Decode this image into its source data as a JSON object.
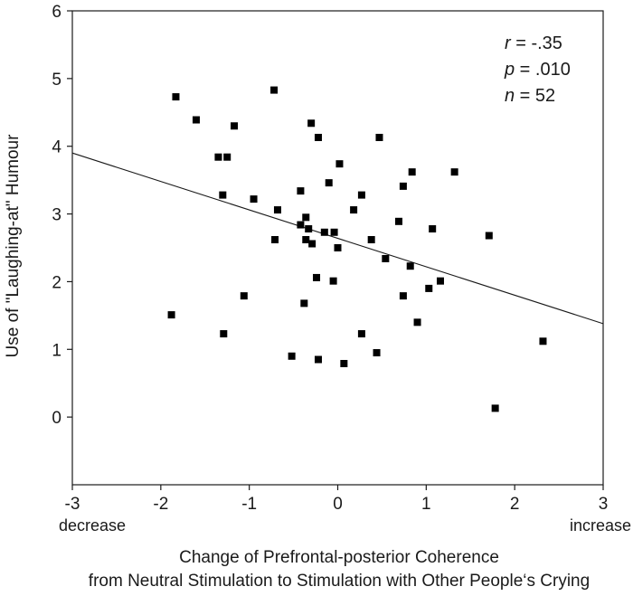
{
  "chart_data": {
    "type": "scatter",
    "title": "",
    "xlabel_lines": [
      "Change of Prefrontal-posterior Coherence",
      "from Neutral Stimulation to Stimulation with Other People‘s Crying"
    ],
    "ylabel": "Use of \"Laughing-at\" Humour",
    "xlim": [
      -3,
      3
    ],
    "ylim": [
      -1,
      6
    ],
    "xticks": [
      -3,
      -2,
      -1,
      0,
      1,
      2,
      3
    ],
    "yticks": [
      0,
      1,
      2,
      3,
      4,
      5,
      6
    ],
    "x_end_labels": {
      "left": "decrease",
      "right": "increase"
    },
    "stats": [
      {
        "var": "r",
        "value": " = -.35"
      },
      {
        "var": "p",
        "value": " = .010"
      },
      {
        "var": "n",
        "value": " = 52"
      }
    ],
    "regression_line": {
      "x": [
        -3,
        3
      ],
      "y": [
        3.9,
        1.38
      ]
    },
    "points": [
      {
        "x": -1.83,
        "y": 4.73
      },
      {
        "x": -1.6,
        "y": 4.39
      },
      {
        "x": -1.17,
        "y": 4.3
      },
      {
        "x": -1.35,
        "y": 3.84
      },
      {
        "x": -1.25,
        "y": 3.84
      },
      {
        "x": -1.3,
        "y": 3.28
      },
      {
        "x": -0.95,
        "y": 3.22
      },
      {
        "x": -0.72,
        "y": 4.83
      },
      {
        "x": -0.3,
        "y": 4.34
      },
      {
        "x": -0.22,
        "y": 4.13
      },
      {
        "x": 0.47,
        "y": 4.13
      },
      {
        "x": 0.02,
        "y": 3.74
      },
      {
        "x": -0.1,
        "y": 3.46
      },
      {
        "x": -0.42,
        "y": 3.34
      },
      {
        "x": -0.68,
        "y": 3.06
      },
      {
        "x": -0.42,
        "y": 2.84
      },
      {
        "x": -0.36,
        "y": 2.95
      },
      {
        "x": -0.33,
        "y": 2.78
      },
      {
        "x": -0.15,
        "y": 2.73
      },
      {
        "x": -0.04,
        "y": 2.73
      },
      {
        "x": 0.0,
        "y": 2.5
      },
      {
        "x": -0.29,
        "y": 2.56
      },
      {
        "x": -0.36,
        "y": 2.62
      },
      {
        "x": -0.71,
        "y": 2.62
      },
      {
        "x": 0.18,
        "y": 3.06
      },
      {
        "x": 0.27,
        "y": 3.28
      },
      {
        "x": 0.38,
        "y": 2.62
      },
      {
        "x": 0.54,
        "y": 2.34
      },
      {
        "x": 0.69,
        "y": 2.89
      },
      {
        "x": 0.74,
        "y": 3.41
      },
      {
        "x": 0.84,
        "y": 3.62
      },
      {
        "x": 1.32,
        "y": 3.62
      },
      {
        "x": 1.07,
        "y": 2.78
      },
      {
        "x": 0.82,
        "y": 2.23
      },
      {
        "x": 1.71,
        "y": 2.68
      },
      {
        "x": -0.24,
        "y": 2.06
      },
      {
        "x": -0.05,
        "y": 2.01
      },
      {
        "x": 0.74,
        "y": 1.79
      },
      {
        "x": 1.03,
        "y": 1.9
      },
      {
        "x": 1.16,
        "y": 2.01
      },
      {
        "x": -1.06,
        "y": 1.79
      },
      {
        "x": -0.38,
        "y": 1.68
      },
      {
        "x": -1.88,
        "y": 1.51
      },
      {
        "x": -1.29,
        "y": 1.23
      },
      {
        "x": 0.27,
        "y": 1.23
      },
      {
        "x": 0.9,
        "y": 1.4
      },
      {
        "x": 0.44,
        "y": 0.95
      },
      {
        "x": -0.52,
        "y": 0.9
      },
      {
        "x": -0.22,
        "y": 0.85
      },
      {
        "x": 0.07,
        "y": 0.79
      },
      {
        "x": 2.32,
        "y": 1.12
      },
      {
        "x": 1.78,
        "y": 0.13
      }
    ]
  }
}
